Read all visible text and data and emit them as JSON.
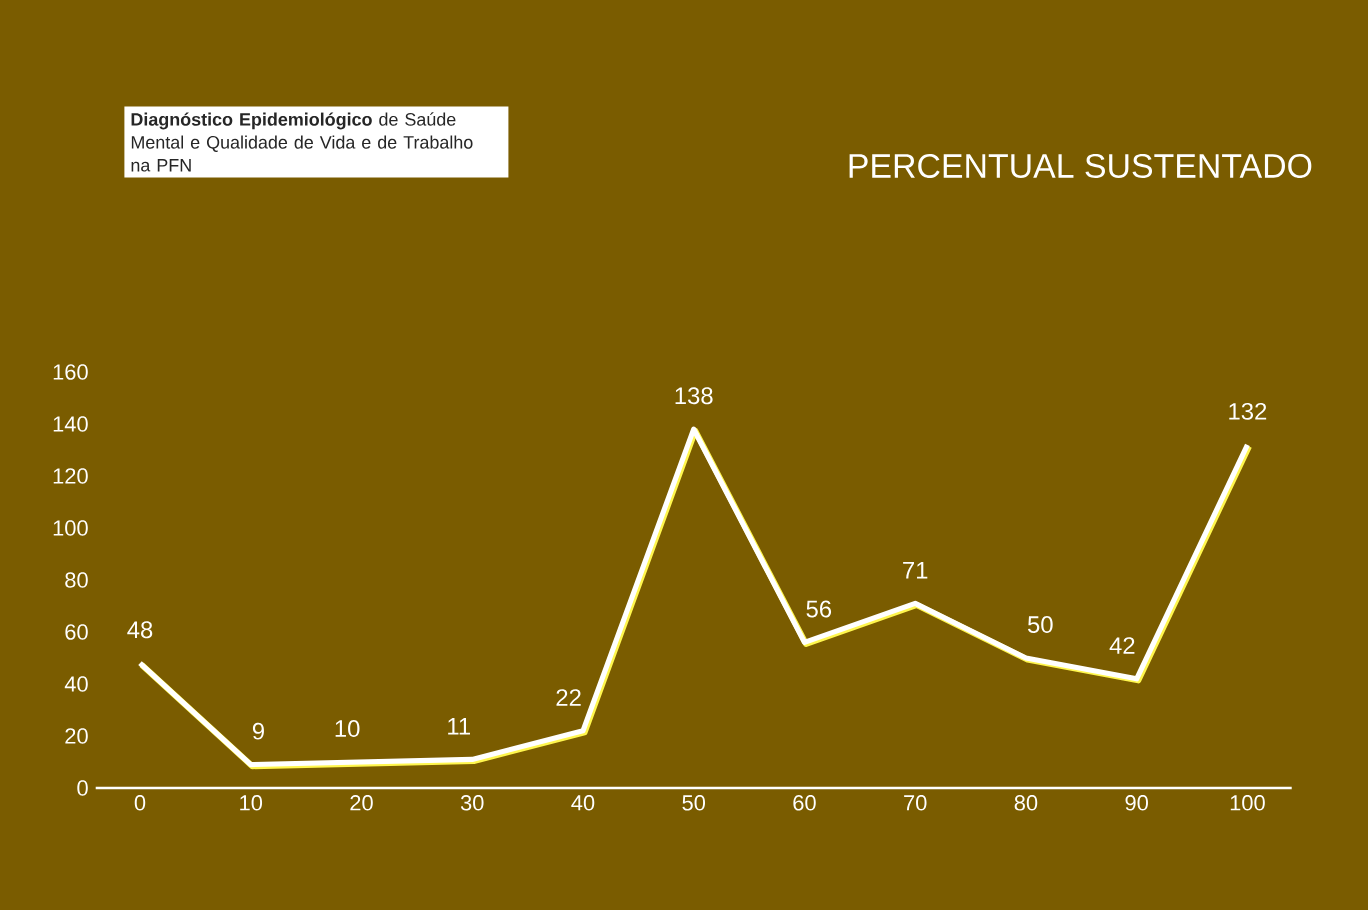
{
  "chart_data": {
    "type": "line",
    "title": "PERCENTUAL SUSTENTADO",
    "subtitle": "**Diagnóstico Epidemiológico** de Saúde Mental e Qualidade de Vida e de Trabalho na PFN",
    "x": [
      0,
      10,
      20,
      30,
      40,
      50,
      60,
      70,
      80,
      90,
      100
    ],
    "values": [
      48,
      9,
      10,
      11,
      22,
      138,
      56,
      71,
      50,
      42,
      132
    ],
    "color": "#ffffff",
    "xlim": [
      -4,
      104
    ],
    "xticks": [
      0,
      10,
      20,
      30,
      40,
      50,
      60,
      70,
      80,
      90,
      100
    ],
    "ylim": [
      0,
      160
    ],
    "yticks": [
      0,
      20,
      40,
      60,
      80,
      100,
      120,
      140,
      160
    ],
    "data_labels": true
  }
}
